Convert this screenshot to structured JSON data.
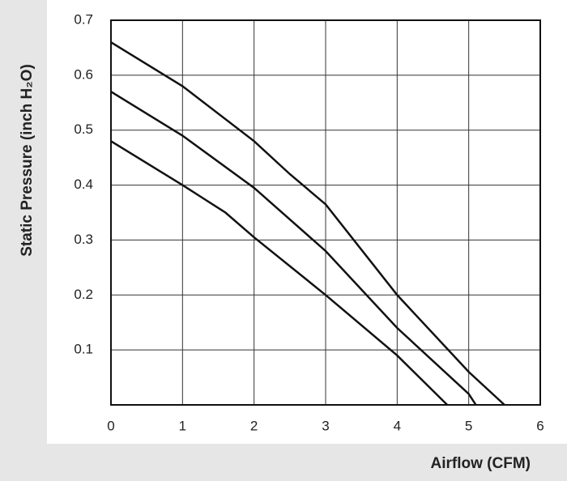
{
  "chart_data": {
    "type": "line",
    "x_label": "Airflow (CFM)",
    "y_label": "Static Pressure (inch H₂O)",
    "xlim": [
      0,
      6
    ],
    "xticks": [
      0,
      1,
      2,
      3,
      4,
      5,
      6
    ],
    "ylim": [
      0,
      0.7
    ],
    "yticks": [
      0.1,
      0.2,
      0.3,
      0.4,
      0.5,
      0.6,
      0.7
    ],
    "grid": true,
    "series": [
      {
        "color": "#111111",
        "x": [
          0,
          1,
          2,
          2.5,
          3,
          4,
          5,
          5.5
        ],
        "values": [
          0.66,
          0.58,
          0.48,
          0.42,
          0.365,
          0.2,
          0.06,
          0
        ]
      },
      {
        "color": "#111111",
        "x": [
          0,
          1,
          2,
          3,
          4,
          5,
          5.1
        ],
        "values": [
          0.57,
          0.49,
          0.395,
          0.28,
          0.14,
          0.02,
          0
        ]
      },
      {
        "color": "#111111",
        "x": [
          0,
          1,
          1.6,
          2,
          3,
          4,
          4.7
        ],
        "values": [
          0.48,
          0.4,
          0.35,
          0.305,
          0.2,
          0.09,
          0
        ]
      }
    ]
  }
}
